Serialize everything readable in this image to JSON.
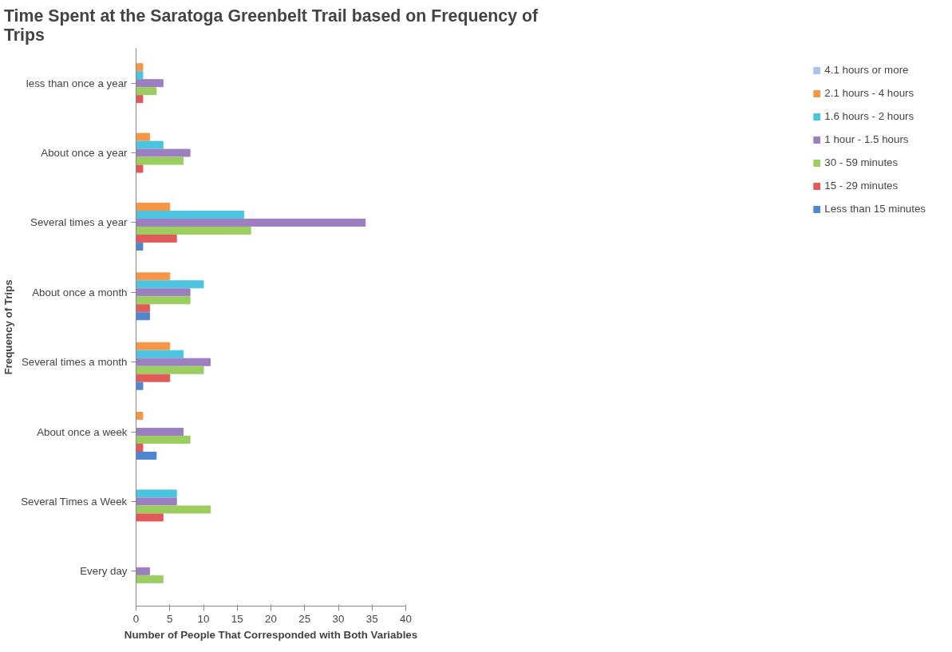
{
  "chart_data": {
    "type": "bar",
    "orientation": "horizontal",
    "title": "Time Spent at the Saratoga Greenbelt Trail based on Frequency of Trips",
    "xlabel": "Number of People That Corresponded with Both Variables",
    "ylabel": "Frequency of Trips",
    "categories": [
      "less than once a year",
      "About once a year",
      "Several times a year",
      "About once a month",
      "Several times a month",
      "About once a week",
      "Several Times a Week",
      "Every day"
    ],
    "series": [
      {
        "name": "4.1 hours or more",
        "color": "#a9c4eb",
        "values": [
          0,
          0,
          0,
          0,
          0,
          0,
          0,
          0
        ]
      },
      {
        "name": "2.1 hours - 4 hours",
        "color": "#f79646",
        "values": [
          1,
          2,
          5,
          5,
          5,
          1,
          0,
          0
        ]
      },
      {
        "name": "1.6 hours - 2 hours",
        "color": "#4bc4e0",
        "values": [
          1,
          4,
          16,
          10,
          7,
          0,
          6,
          0
        ]
      },
      {
        "name": "1 hour - 1.5 hours",
        "color": "#9b7fc0",
        "values": [
          4,
          8,
          34,
          8,
          11,
          7,
          6,
          2
        ]
      },
      {
        "name": "30 - 59 minutes",
        "color": "#9bcd5f",
        "values": [
          3,
          7,
          17,
          8,
          10,
          8,
          11,
          4
        ]
      },
      {
        "name": "15 - 29 minutes",
        "color": "#e05a5a",
        "values": [
          1,
          1,
          6,
          2,
          5,
          1,
          4,
          0
        ]
      },
      {
        "name": "Less than 15 minutes",
        "color": "#4f86d0",
        "values": [
          0,
          0,
          1,
          2,
          1,
          3,
          0,
          0
        ]
      }
    ],
    "xlim": [
      0,
      40
    ],
    "xticks": [
      0,
      5,
      10,
      15,
      20,
      25,
      30,
      35,
      40
    ],
    "grid": false,
    "legend": "right"
  }
}
